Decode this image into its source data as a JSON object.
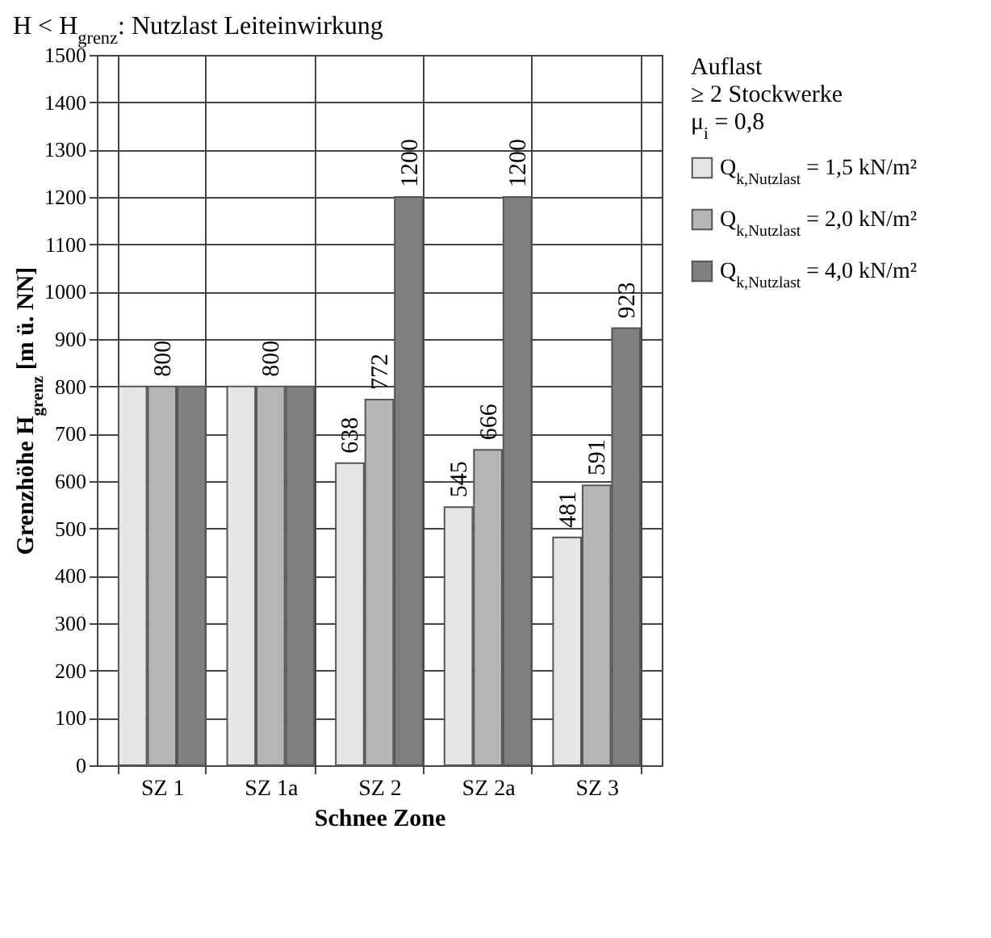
{
  "chart_data": {
    "type": "bar",
    "title": "H < H$_{grenz}$: Nutzlast Leiteinwirkung",
    "xlabel": "Schnee Zone",
    "ylabel": "Grenzhöhe H$_{grenz}$ [m ü. NN]",
    "legend_title": "Auflast\n≥ 2 Stockwerke\nμ$_{i}$ = 0,8",
    "categories": [
      "SZ 1",
      "SZ 1a",
      "SZ 2",
      "SZ 2a",
      "SZ 3"
    ],
    "series": [
      {
        "name": "Q$_{k,Nutzlast}$ = 1,5 kN/m²",
        "color": "#e6e6e6",
        "values": [
          800,
          800,
          638,
          545,
          481
        ],
        "value_labels": [
          null,
          null,
          "638",
          "545",
          "481"
        ]
      },
      {
        "name": "Q$_{k,Nutzlast}$ = 2,0 kN/m²",
        "color": "#b5b5b5",
        "values": [
          800,
          800,
          772,
          666,
          591
        ],
        "value_labels": [
          "800",
          "800",
          "772",
          "666",
          "591"
        ]
      },
      {
        "name": "Q$_{k,Nutzlast}$ = 4,0 kN/m²",
        "color": "#7f7f7f",
        "values": [
          800,
          800,
          1200,
          1200,
          923
        ],
        "value_labels": [
          null,
          null,
          "1200",
          "1200",
          "923"
        ]
      }
    ],
    "ylim": [
      0,
      1500
    ],
    "yticks": [
      0,
      100,
      200,
      300,
      400,
      500,
      600,
      700,
      800,
      900,
      1000,
      1100,
      1200,
      1300,
      1400,
      1500
    ],
    "grid": true,
    "legend": "right"
  }
}
